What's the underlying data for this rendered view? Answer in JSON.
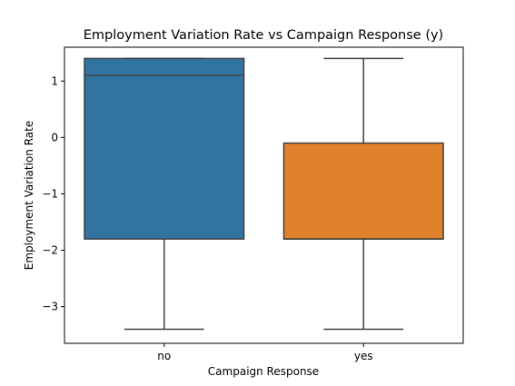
{
  "chart_data": {
    "type": "box",
    "title": "Employment Variation Rate vs Campaign Response (y)",
    "xlabel": "Campaign Response",
    "ylabel": "Employment Variation Rate",
    "categories": [
      "no",
      "yes"
    ],
    "ylim": [
      -3.65,
      1.6
    ],
    "yticks": [
      1,
      0,
      -1,
      -2,
      -3
    ],
    "ytick_labels": [
      "1",
      "0",
      "−1",
      "−2",
      "−3"
    ],
    "grid": false,
    "boxes": [
      {
        "category": "no",
        "whisker_low": -3.4,
        "q1": -1.8,
        "median": 1.1,
        "q3": 1.4,
        "whisker_high": 1.4,
        "color": "#3274a1"
      },
      {
        "category": "yes",
        "whisker_low": -3.4,
        "q1": -1.8,
        "median": -1.8,
        "q3": -0.1,
        "whisker_high": 1.4,
        "color": "#e1812c"
      }
    ]
  }
}
